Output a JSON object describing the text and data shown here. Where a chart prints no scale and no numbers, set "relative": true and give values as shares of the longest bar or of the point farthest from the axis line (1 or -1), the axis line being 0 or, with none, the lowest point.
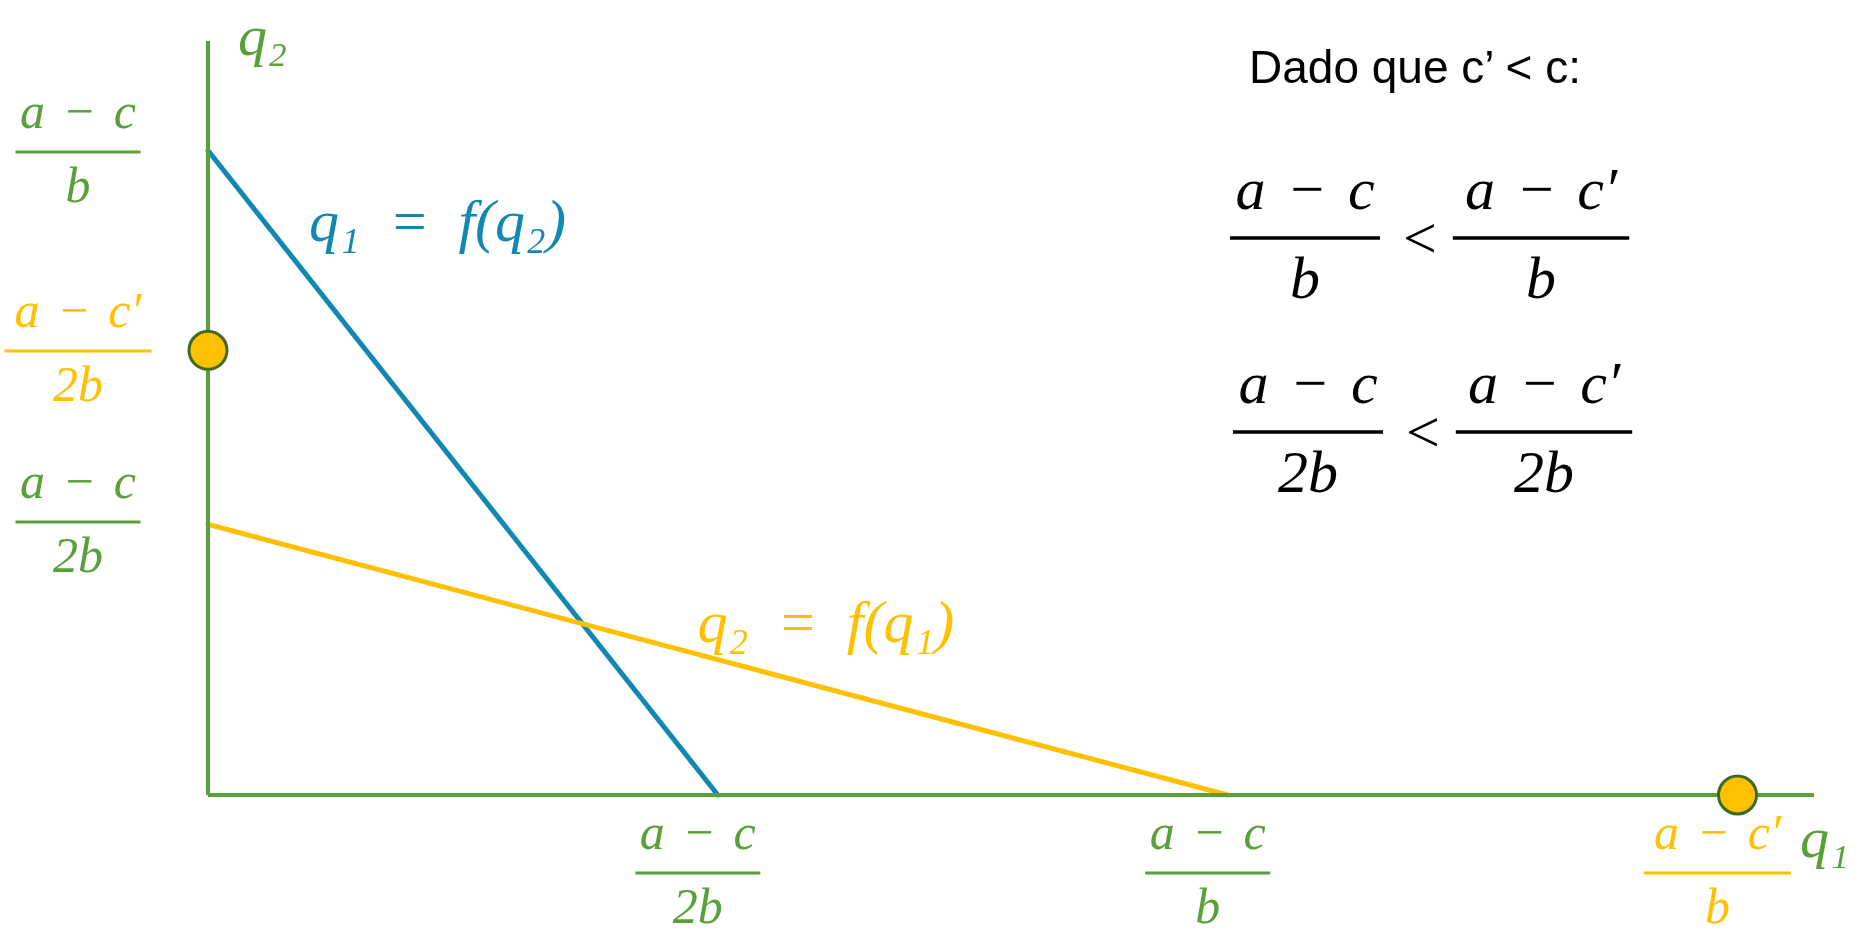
{
  "chart_data": {
    "type": "line",
    "relative": true,
    "xlabel": "q₁",
    "ylabel": "q₂",
    "categories": [
      null,
      "a − c\n2b",
      "a − c\nb",
      "a − c′\nb"
    ],
    "series": [
      {
        "name": "q₁ = f(q₂)",
        "color": "#1088b2",
        "values": [
          1,
          0,
          null,
          null
        ]
      },
      {
        "name": "q₂ = f(q₁)",
        "color": "#ffc000",
        "values": [
          0.42,
          0.21,
          0,
          null
        ]
      },
      {
        "type": "scatter",
        "color": "#ffc000",
        "marker": "circle",
        "values": [
          0.69,
          null,
          null,
          0
        ]
      }
    ],
    "annotations": [
      "a − c\nb",
      "a − c′\n2b",
      "a − c\n2b",
      "Dado que c’ < c:",
      "a − c\nb",
      "<",
      "a − c′\nb",
      "a − c\n2b",
      "<",
      "a − c′\n2b"
    ]
  }
}
